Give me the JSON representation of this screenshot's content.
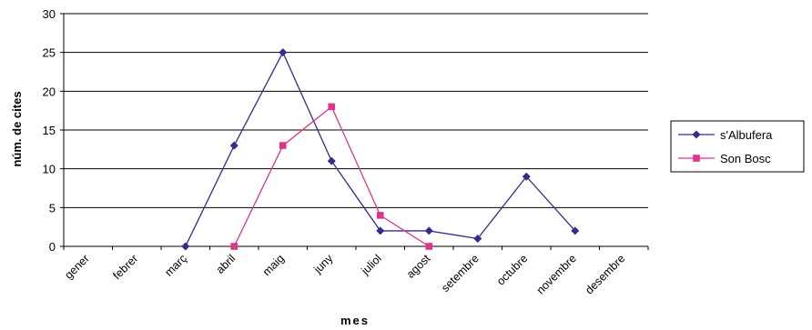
{
  "chart_data": {
    "type": "line",
    "title": "",
    "xlabel": "mes",
    "ylabel": "núm. de cites",
    "categories": [
      "gener",
      "febrer",
      "març",
      "abril",
      "maig",
      "juny",
      "juliol",
      "agost",
      "setembre",
      "octubre",
      "novembre",
      "desembre"
    ],
    "ylim": [
      0,
      30
    ],
    "yticks": [
      0,
      5,
      10,
      15,
      20,
      25,
      30
    ],
    "grid": true,
    "legend_position": "right",
    "series": [
      {
        "name": "s'Albufera",
        "color": "#3a2a8c",
        "marker": "diamond",
        "values": [
          null,
          null,
          0,
          13,
          25,
          11,
          2,
          2,
          1,
          9,
          2,
          null
        ]
      },
      {
        "name": "Son Bosc",
        "color": "#e0338e",
        "marker": "square",
        "values": [
          null,
          null,
          null,
          0,
          13,
          18,
          4,
          0,
          null,
          null,
          null,
          null
        ]
      }
    ]
  }
}
